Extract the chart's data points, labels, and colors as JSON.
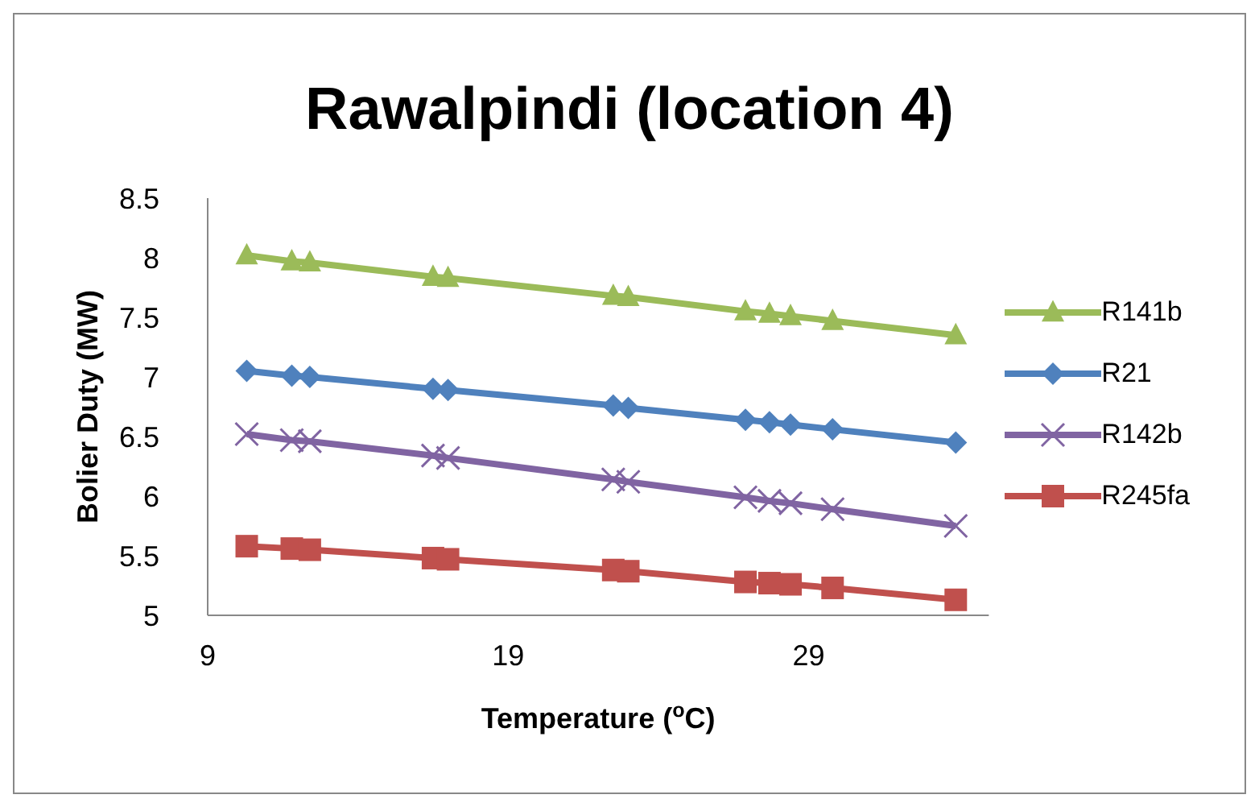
{
  "chart_data": {
    "type": "line",
    "title": "Rawalpindi (location 4)",
    "xlabel": "Temperature ($^{o}$C)",
    "ylabel": "Bolier Duty (MW)",
    "x": [
      10.3,
      11.8,
      12.4,
      16.5,
      17.0,
      22.5,
      23.0,
      26.9,
      27.7,
      28.4,
      29.8,
      33.9
    ],
    "series": [
      {
        "name": "R141b",
        "color": "#9bbb59",
        "marker": "triangle",
        "values": [
          8.02,
          7.97,
          7.96,
          7.84,
          7.83,
          7.68,
          7.67,
          7.55,
          7.53,
          7.51,
          7.47,
          7.35
        ]
      },
      {
        "name": "R21",
        "color": "#4f81bd",
        "marker": "diamond",
        "values": [
          7.05,
          7.01,
          7.0,
          6.9,
          6.89,
          6.76,
          6.74,
          6.64,
          6.62,
          6.6,
          6.56,
          6.45
        ]
      },
      {
        "name": "R142b",
        "color": "#8064a2",
        "marker": "cross",
        "values": [
          6.52,
          6.47,
          6.46,
          6.34,
          6.32,
          6.14,
          6.12,
          5.99,
          5.96,
          5.94,
          5.89,
          5.75
        ]
      },
      {
        "name": "R245fa",
        "color": "#c0504d",
        "marker": "square",
        "values": [
          5.58,
          5.56,
          5.55,
          5.48,
          5.47,
          5.38,
          5.37,
          5.28,
          5.27,
          5.26,
          5.23,
          5.13
        ]
      }
    ],
    "xlim": [
      9,
      35
    ],
    "xticks": [
      9,
      19,
      29
    ],
    "ylim": [
      5,
      8.5
    ],
    "yticks": [
      5,
      5.5,
      6,
      6.5,
      7,
      7.5,
      8,
      8.5
    ],
    "grid": false,
    "legend": "right",
    "line_style": "solid"
  }
}
